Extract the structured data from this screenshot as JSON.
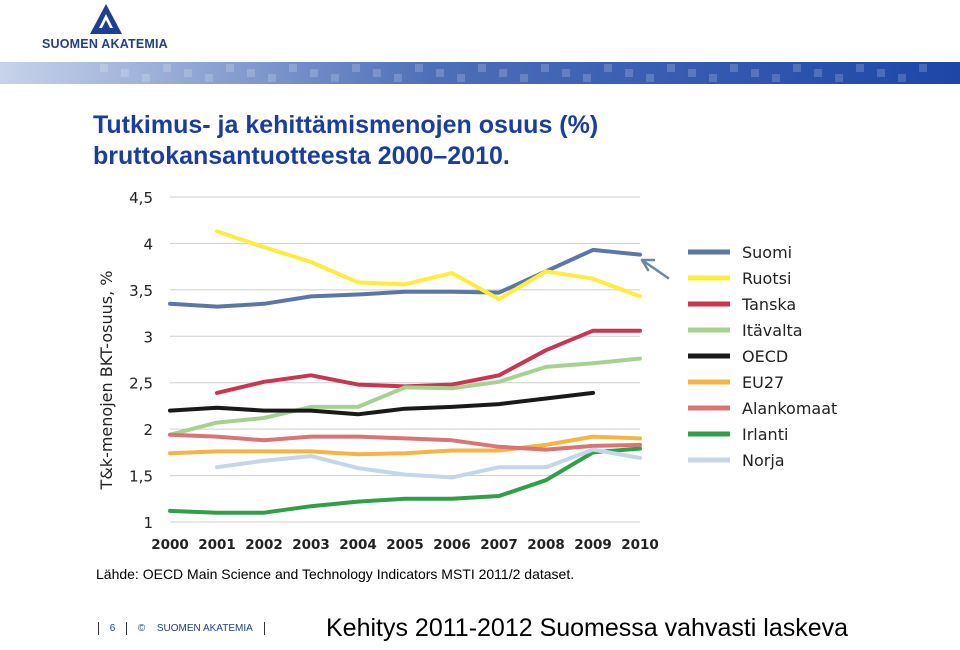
{
  "header": {
    "org_name": "SUOMEN AKATEMIA",
    "colors": {
      "brand": "#1f3f8f",
      "title": "#1a3da0"
    }
  },
  "title": {
    "line1": "Tutkimus- ja kehittämismenojen osuus (%)",
    "line2": "bruttokansantuotteesta 2000–2010."
  },
  "chart_data": {
    "type": "line",
    "title": "",
    "xlabel": "",
    "ylabel": "T&k-menojen BKT-osuus, %",
    "x": [
      2000,
      2001,
      2002,
      2003,
      2004,
      2005,
      2006,
      2007,
      2008,
      2009,
      2010
    ],
    "xlim": [
      2000,
      2010
    ],
    "ylim": [
      1,
      4.5
    ],
    "y_ticks": [
      "1",
      "1,5",
      "2",
      "2,5",
      "3",
      "3,5",
      "4",
      "4,5"
    ],
    "x_ticks": [
      "2000",
      "2001",
      "2002",
      "2003",
      "2004",
      "2005",
      "2006",
      "2007",
      "2008",
      "2009",
      "2010"
    ],
    "grid": true,
    "legend_position": "right",
    "series": [
      {
        "name": "Suomi",
        "color": "#5b77a6",
        "values": [
          3.35,
          3.32,
          3.35,
          3.43,
          3.45,
          3.48,
          3.48,
          3.47,
          3.7,
          3.93,
          3.88
        ]
      },
      {
        "name": "Ruotsi",
        "color": "#ffec3c",
        "values": [
          null,
          4.13,
          3.96,
          3.8,
          3.58,
          3.56,
          3.68,
          3.4,
          3.7,
          3.62,
          3.43
        ]
      },
      {
        "name": "Tanska",
        "color": "#cc3550",
        "values": [
          null,
          2.39,
          2.51,
          2.58,
          2.48,
          2.46,
          2.48,
          2.58,
          2.85,
          3.06,
          3.06
        ]
      },
      {
        "name": "Itävalta",
        "color": "#a6d291",
        "values": [
          1.94,
          2.07,
          2.12,
          2.24,
          2.24,
          2.45,
          2.44,
          2.51,
          2.67,
          2.71,
          2.76
        ]
      },
      {
        "name": "OECD",
        "color": "#1a1a1a",
        "values": [
          2.2,
          2.23,
          2.2,
          2.2,
          2.16,
          2.22,
          2.24,
          2.27,
          2.33,
          2.39,
          null
        ]
      },
      {
        "name": "EU27",
        "color": "#f6b445",
        "values": [
          1.74,
          1.76,
          1.76,
          1.76,
          1.73,
          1.74,
          1.77,
          1.77,
          1.83,
          1.92,
          1.9
        ]
      },
      {
        "name": "Alankomaat",
        "color": "#db7474",
        "values": [
          1.94,
          1.92,
          1.88,
          1.92,
          1.92,
          1.9,
          1.88,
          1.81,
          1.78,
          1.82,
          1.83
        ]
      },
      {
        "name": "Irlanti",
        "color": "#2f9f48",
        "values": [
          1.12,
          1.1,
          1.1,
          1.17,
          1.22,
          1.25,
          1.25,
          1.28,
          1.45,
          1.75,
          1.79
        ]
      },
      {
        "name": "Norja",
        "color": "#c5d6ea",
        "values": [
          null,
          1.59,
          1.66,
          1.71,
          1.58,
          1.51,
          1.48,
          1.59,
          1.59,
          1.78,
          1.69
        ]
      }
    ]
  },
  "source": "Lähde: OECD Main Science and Technology Indicators MSTI 2011/2 dataset.",
  "footer": {
    "page": "6",
    "copyright": "©",
    "org": "SUOMEN AKATEMIA"
  },
  "headline": "Kehitys 2011-2012 Suomessa vahvasti laskeva"
}
